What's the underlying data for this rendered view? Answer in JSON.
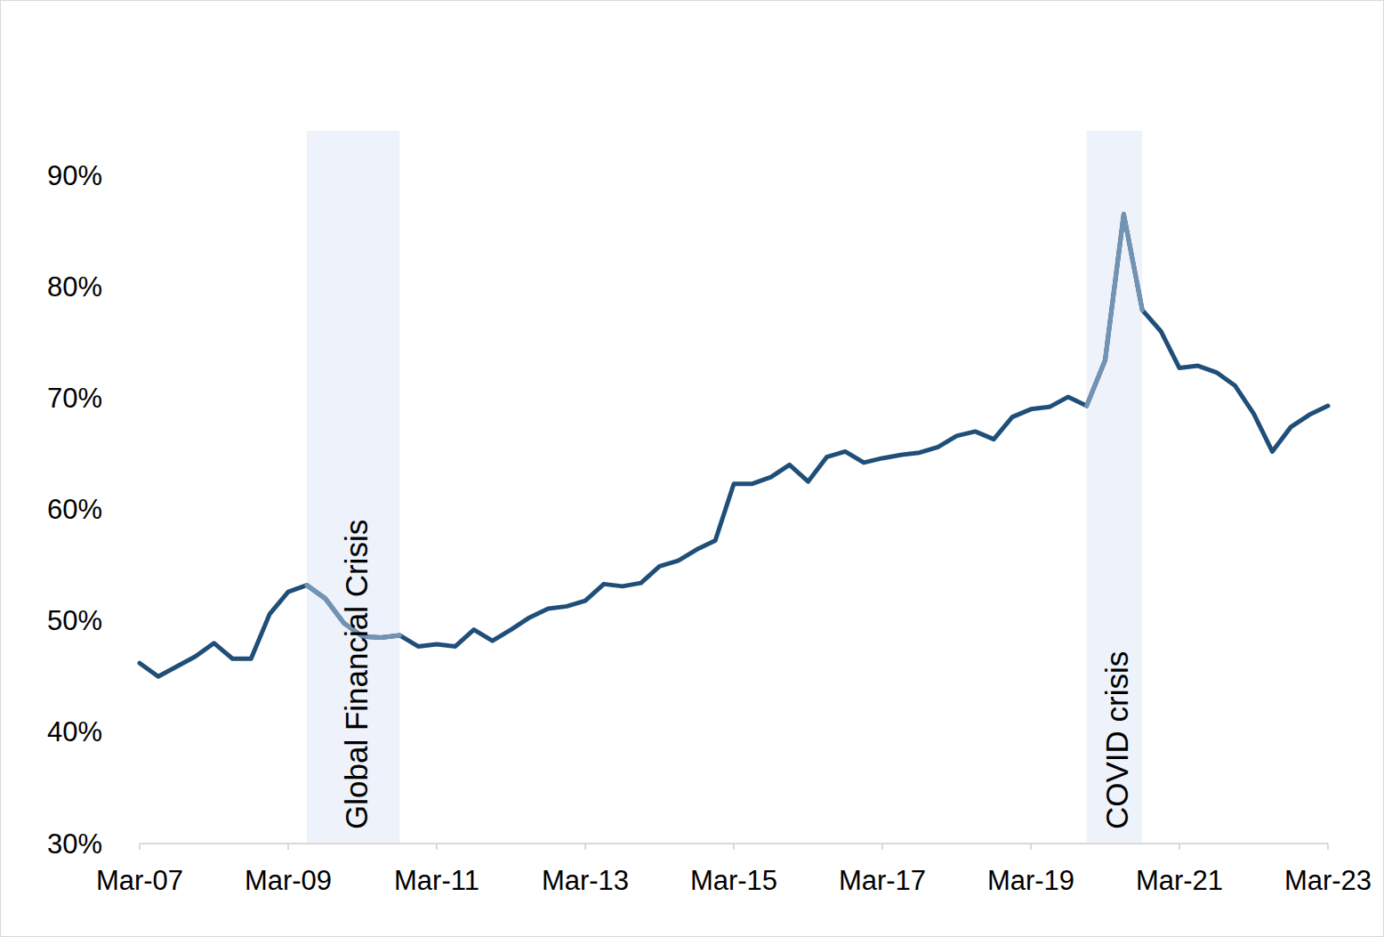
{
  "chart_data": {
    "type": "line",
    "categories": [
      "Mar-07",
      null,
      null,
      null,
      null,
      null,
      null,
      null,
      "Mar-09",
      null,
      null,
      null,
      null,
      null,
      null,
      null,
      "Mar-11",
      null,
      null,
      null,
      null,
      null,
      null,
      null,
      "Mar-13",
      null,
      null,
      null,
      null,
      null,
      null,
      null,
      "Mar-15",
      null,
      null,
      null,
      null,
      null,
      null,
      null,
      "Mar-17",
      null,
      null,
      null,
      null,
      null,
      null,
      null,
      "Mar-19",
      null,
      null,
      null,
      null,
      null,
      null,
      null,
      "Mar-21",
      null,
      null,
      null,
      null,
      null,
      null,
      null,
      "Mar-23"
    ],
    "series": [
      {
        "color": "#1f4e79",
        "values": [
          46.2,
          45.0,
          45.9,
          46.8,
          48.0,
          46.6,
          46.6,
          50.6,
          52.6,
          53.2,
          52.0,
          49.8,
          48.6,
          48.5,
          48.7,
          47.7,
          47.9,
          47.7,
          49.2,
          48.2,
          49.2,
          50.3,
          51.1,
          51.3,
          51.8,
          53.3,
          53.1,
          53.4,
          54.9,
          55.4,
          56.4,
          57.2,
          62.3,
          62.3,
          62.9,
          64.0,
          62.5,
          64.7,
          65.2,
          64.2,
          64.6,
          64.9,
          65.1,
          65.6,
          66.6,
          67.0,
          66.3,
          68.3,
          69.0,
          69.2,
          70.1,
          69.3,
          73.4,
          86.5,
          77.9,
          76.0,
          72.7,
          72.9,
          72.3,
          71.1,
          68.6,
          65.2,
          67.4,
          68.5,
          69.3
        ]
      }
    ],
    "ylim": [
      30,
      90
    ],
    "yticks": [
      {
        "value": 30,
        "label": "30%"
      },
      {
        "value": 40,
        "label": "40%"
      },
      {
        "value": 50,
        "label": "50%"
      },
      {
        "value": 60,
        "label": "60%"
      },
      {
        "value": 70,
        "label": "70%"
      },
      {
        "value": 80,
        "label": "80%"
      },
      {
        "value": 90,
        "label": "90%"
      }
    ],
    "annotations": [
      {
        "text": "Global Financial Crisis",
        "start": 9,
        "end": 14
      },
      {
        "text": "COVID crisis",
        "start": 51,
        "end": 54
      }
    ],
    "grid": false
  }
}
